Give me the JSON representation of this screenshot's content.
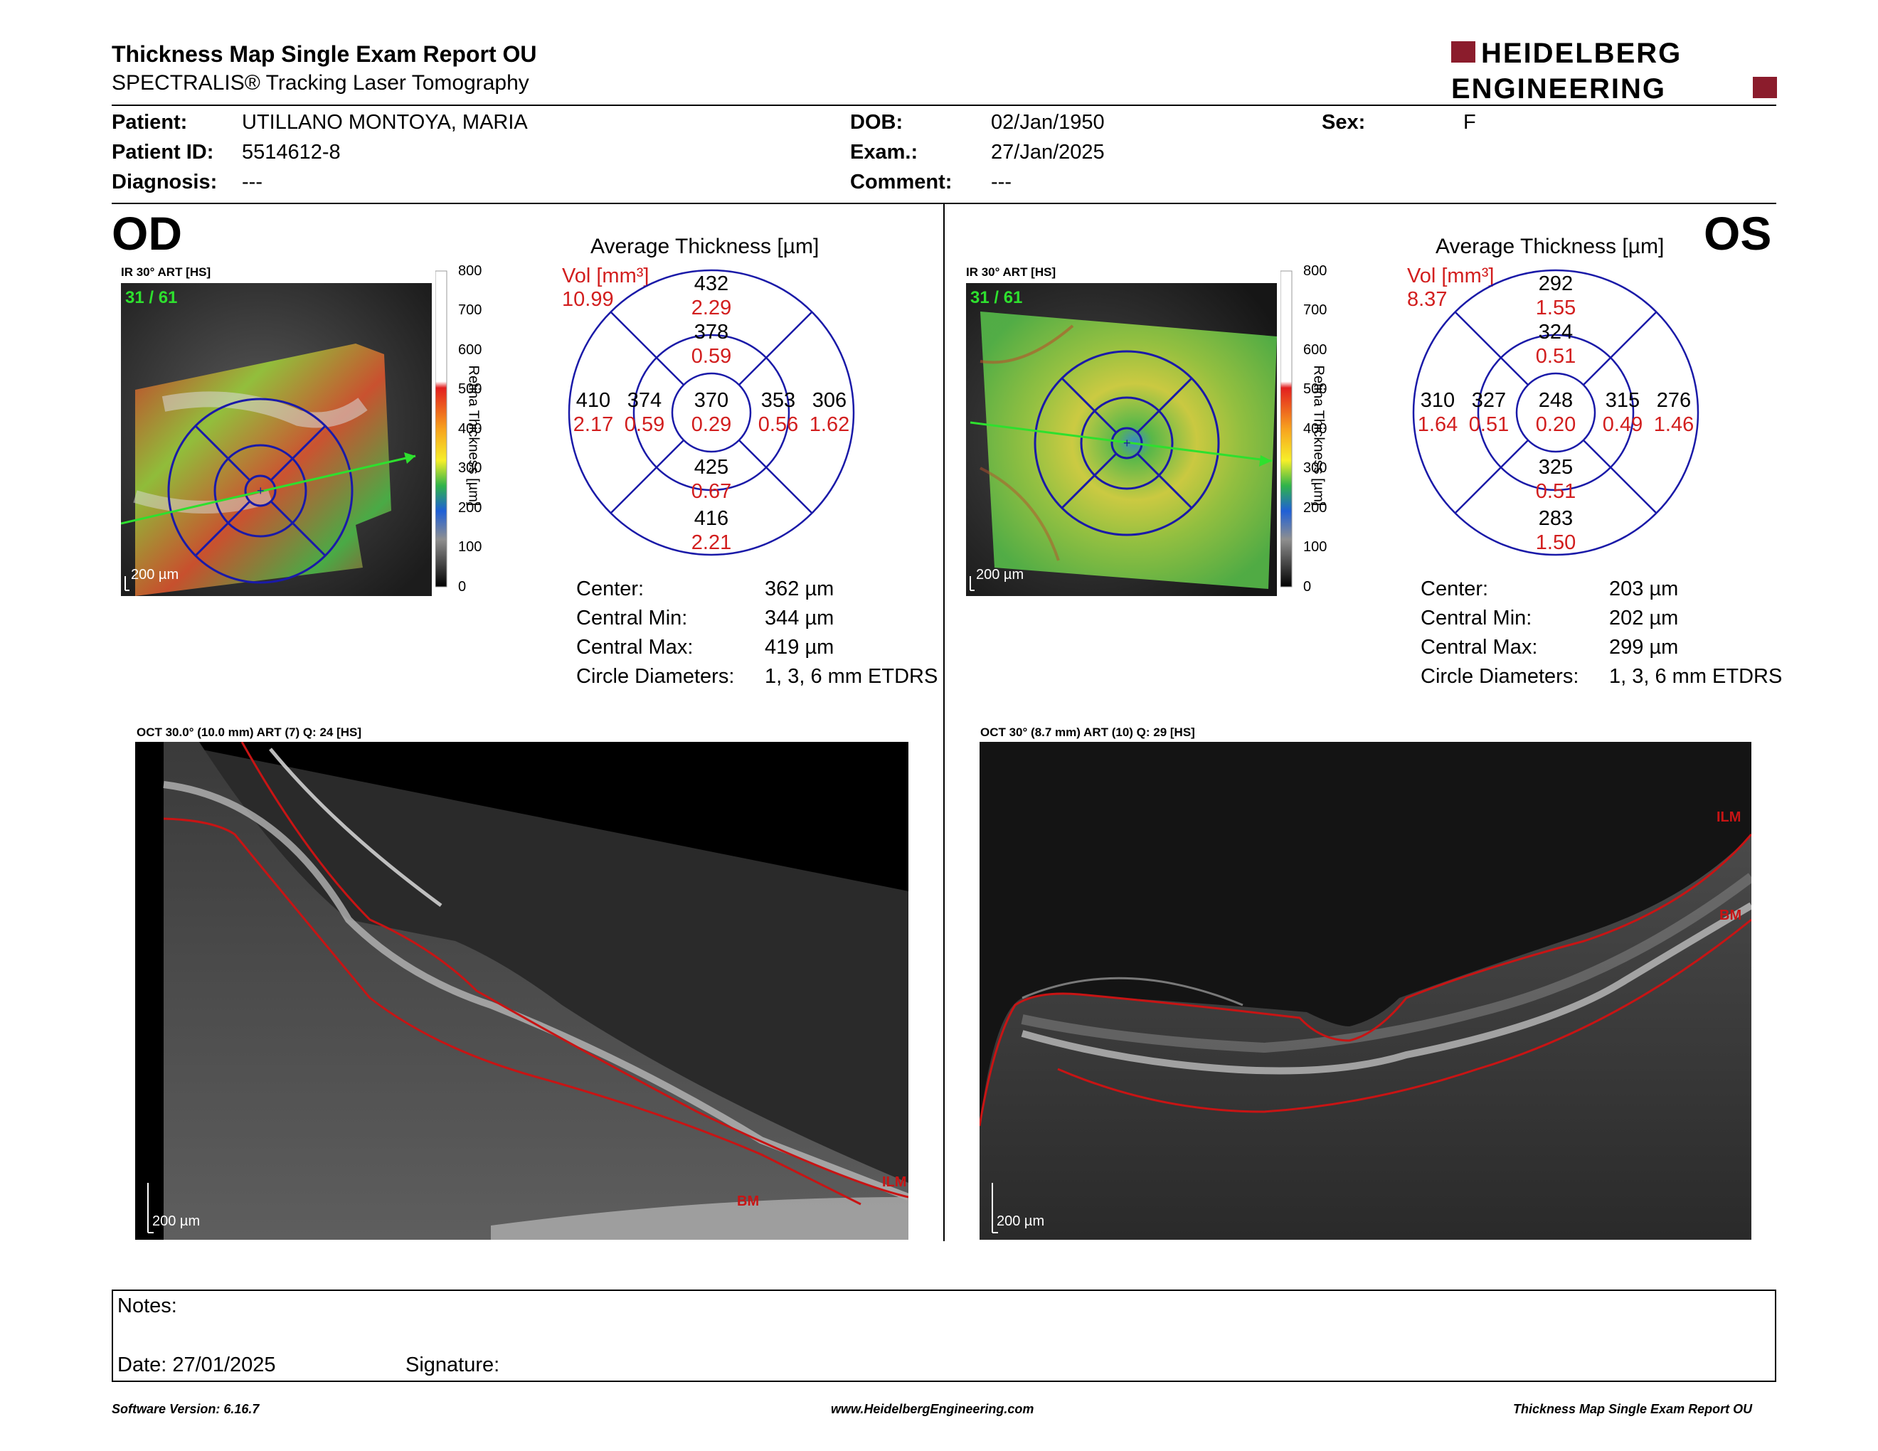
{
  "header": {
    "title": "Thickness Map Single Exam Report OU",
    "subtitle": "SPECTRALIS® Tracking Laser Tomography",
    "logo_line1": "HEIDELBERG",
    "logo_line2": "ENGINEERING",
    "brand_color": "#8b1c2c"
  },
  "patient": {
    "patient_label": "Patient:",
    "patient_value": "UTILLANO MONTOYA, MARIA",
    "id_label": "Patient ID:",
    "id_value": "5514612-8",
    "diagnosis_label": "Diagnosis:",
    "diagnosis_value": "---",
    "dob_label": "DOB:",
    "dob_value": "02/Jan/1950",
    "exam_label": "Exam.:",
    "exam_value": "27/Jan/2025",
    "comment_label": "Comment:",
    "comment_value": "---",
    "sex_label": "Sex:",
    "sex_value": "F"
  },
  "od": {
    "eye": "OD",
    "ir_caption": "IR 30° ART [HS]",
    "frame": "31 / 61",
    "ir_scale": "200 µm",
    "avg_title": "Average Thickness [µm]",
    "vol_label": "Vol [mm³]",
    "vol_value": "10.99",
    "grid": {
      "center_t": "370",
      "center_v": "0.29",
      "inner_sup_t": "378",
      "inner_sup_v": "0.59",
      "inner_nas_t": "374",
      "inner_nas_v": "0.59",
      "inner_tem_t": "353",
      "inner_tem_v": "0.56",
      "inner_inf_t": "425",
      "inner_inf_v": "0.67",
      "outer_sup_t": "432",
      "outer_sup_v": "2.29",
      "outer_nas_t": "410",
      "outer_nas_v": "2.17",
      "outer_tem_t": "306",
      "outer_tem_v": "1.62",
      "outer_inf_t": "416",
      "outer_inf_v": "2.21"
    },
    "stats": {
      "center_label": "Center:",
      "center_value": "362 µm",
      "min_label": "Central Min:",
      "min_value": "344 µm",
      "max_label": "Central Max:",
      "max_value": "419 µm",
      "diam_label": "Circle Diameters:",
      "diam_value": "1, 3, 6 mm ETDRS"
    },
    "oct_caption": "OCT 30.0° (10.0 mm) ART (7) Q: 24 [HS]",
    "oct_scale": "200 µm",
    "oct_ilm": "ILM",
    "oct_bm": "BM"
  },
  "os": {
    "eye": "OS",
    "ir_caption": "IR 30° ART [HS]",
    "frame": "31 / 61",
    "ir_scale": "200 µm",
    "avg_title": "Average Thickness [µm]",
    "vol_label": "Vol [mm³]",
    "vol_value": "8.37",
    "grid": {
      "center_t": "248",
      "center_v": "0.20",
      "inner_sup_t": "324",
      "inner_sup_v": "0.51",
      "inner_nas_t": "327",
      "inner_nas_v": "0.51",
      "inner_tem_t": "315",
      "inner_tem_v": "0.49",
      "inner_inf_t": "325",
      "inner_inf_v": "0.51",
      "outer_sup_t": "292",
      "outer_sup_v": "1.55",
      "outer_nas_t": "310",
      "outer_nas_v": "1.64",
      "outer_tem_t": "276",
      "outer_tem_v": "1.46",
      "outer_inf_t": "283",
      "outer_inf_v": "1.50"
    },
    "stats": {
      "center_label": "Center:",
      "center_value": "203 µm",
      "min_label": "Central Min:",
      "min_value": "202 µm",
      "max_label": "Central Max:",
      "max_value": "299 µm",
      "diam_label": "Circle Diameters:",
      "diam_value": "1, 3, 6 mm ETDRS"
    },
    "oct_caption": "OCT 30° (8.7 mm) ART (10) Q: 29 [HS]",
    "oct_scale": "200 µm",
    "oct_ilm": "ILM",
    "oct_bm": "BM"
  },
  "colorbar": {
    "ticks": [
      "800",
      "700",
      "600",
      "500",
      "400",
      "300",
      "200",
      "100",
      "0"
    ],
    "label": "Retina  Thickness [µm]"
  },
  "notes": {
    "notes_label": "Notes:",
    "date_label": "Date: 27/01/2025",
    "signature_label": "Signature:"
  },
  "footer": {
    "left": "Software Version: 6.16.7",
    "center": "www.HeidelbergEngineering.com",
    "right": "Thickness Map Single Exam Report OU"
  },
  "colors": {
    "grid_blue": "#1a1aa8",
    "value_red": "#d21e1e",
    "layer_red": "#c81414",
    "frame_green": "#2ee02e"
  }
}
